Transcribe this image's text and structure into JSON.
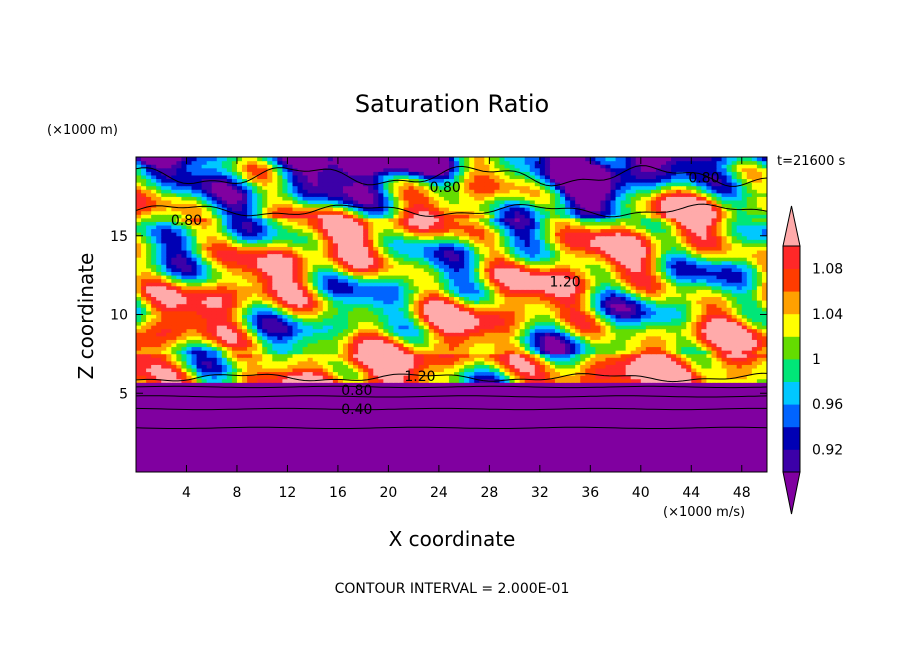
{
  "chart_data": {
    "type": "heatmap",
    "title": "Saturation Ratio",
    "xlabel": "X coordinate",
    "ylabel": "Z coordinate",
    "x_unit": "(×1000 m/s)",
    "y_unit": "(×1000 m)",
    "time_label": "t=21600 s",
    "footer": "CONTOUR INTERVAL = 2.000E-01",
    "xlim": [
      0,
      50
    ],
    "ylim": [
      0,
      20
    ],
    "x_ticks": [
      4,
      8,
      12,
      16,
      20,
      24,
      28,
      32,
      36,
      40,
      44,
      48
    ],
    "y_ticks": [
      5,
      10,
      15
    ],
    "colorbar": {
      "levels": [
        0.9,
        0.92,
        0.94,
        0.96,
        0.98,
        1.0,
        1.02,
        1.04,
        1.06,
        1.08,
        1.1
      ],
      "tick_labels": [
        "0.92",
        "0.96",
        "1",
        "1.04",
        "1.08"
      ],
      "tick_values": [
        0.92,
        0.96,
        1.0,
        1.04,
        1.08
      ],
      "colors": [
        "#8000a0",
        "#3c00a8",
        "#0000b4",
        "#0064ff",
        "#00c8ff",
        "#00e678",
        "#64dc00",
        "#ffff00",
        "#ffa000",
        "#ff3c00",
        "#ff2828",
        "#ffaaaa"
      ],
      "extend": "both"
    },
    "contour_labels": [
      {
        "text": "0.80",
        "x": 4.0,
        "y": 16.0
      },
      {
        "text": "0.80",
        "x": 24.5,
        "y": 18.1
      },
      {
        "text": "0.80",
        "x": 45.0,
        "y": 18.7
      },
      {
        "text": "1.20",
        "x": 34.0,
        "y": 12.1
      },
      {
        "text": "1.20",
        "x": 22.5,
        "y": 6.1
      },
      {
        "text": "0.80",
        "x": 17.5,
        "y": 5.2
      },
      {
        "text": "0.40",
        "x": 17.5,
        "y": 4.0
      }
    ],
    "below_cloud": {
      "top_z": 5.7,
      "value": 0.7,
      "contour_levels": [
        0.8,
        0.6,
        0.4,
        0.2
      ],
      "contour_z": [
        5.4,
        4.8,
        4.0,
        2.8
      ]
    }
  }
}
